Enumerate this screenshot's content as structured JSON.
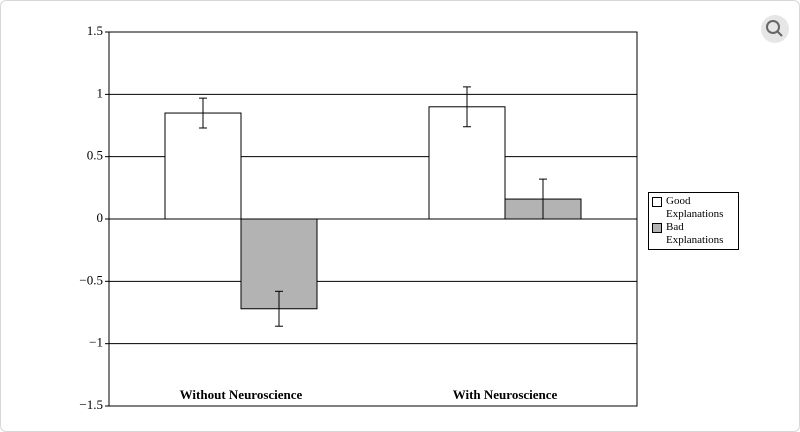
{
  "chart_data": {
    "type": "bar",
    "categories": [
      "Without Neuroscience",
      "With Neuroscience"
    ],
    "series": [
      {
        "name": "Good Explanations",
        "color": "#ffffff",
        "values": [
          0.85,
          0.9
        ],
        "errors": [
          0.12,
          0.16
        ]
      },
      {
        "name": "Bad Explanations",
        "color": "#b3b3b3",
        "values": [
          -0.72,
          0.16
        ],
        "errors": [
          0.14,
          0.16
        ]
      }
    ],
    "ylim": [
      -1.5,
      1.5
    ],
    "yticks": [
      {
        "value": -1.5,
        "label": "−1.5"
      },
      {
        "value": -1,
        "label": "−1"
      },
      {
        "value": -0.5,
        "label": "−0.5"
      },
      0,
      0.5,
      1,
      1.5
    ],
    "grid": true,
    "legend": "right"
  }
}
